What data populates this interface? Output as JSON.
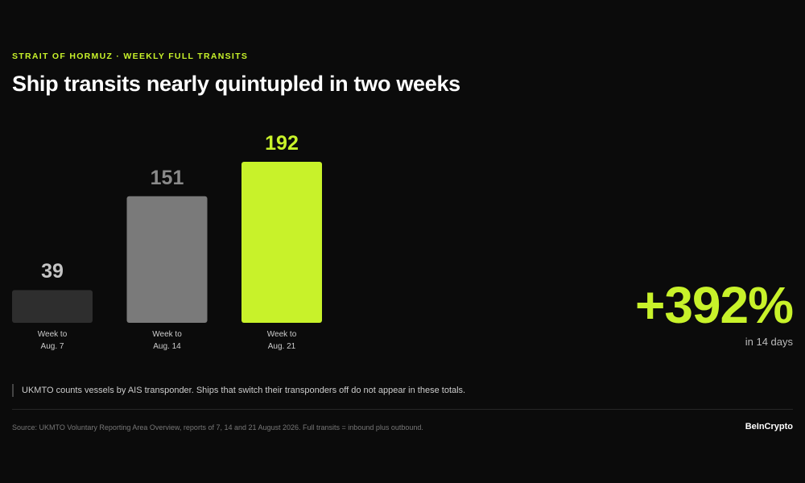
{
  "chart_data": {
    "type": "bar",
    "kicker": "STRAIT OF HORMUZ · WEEKLY FULL TRANSITS",
    "title": "Ship transits nearly quintupled in two weeks",
    "categories": [
      "Week to Aug. 7",
      "Week to Aug. 14",
      "Week to Aug. 21"
    ],
    "values": [
      39,
      151,
      192
    ],
    "colors": [
      "#2e2e2e",
      "#7a7a7a",
      "#c8f22a"
    ],
    "label_colors": [
      "#c4c4c4",
      "#8a8a8a",
      "#c8f22a"
    ],
    "highlight": "+392%",
    "highlight_caption": "in 14 days",
    "note": "UKMTO counts vessels by AIS transponder. Ships that switch their transponders off do not appear in these totals.",
    "source": "Source: UKMTO Voluntary Reporting Area Overview, reports of 7, 14 and 21 August 2026. Full transits = inbound plus outbound.",
    "brand": "BeInCrypto"
  }
}
